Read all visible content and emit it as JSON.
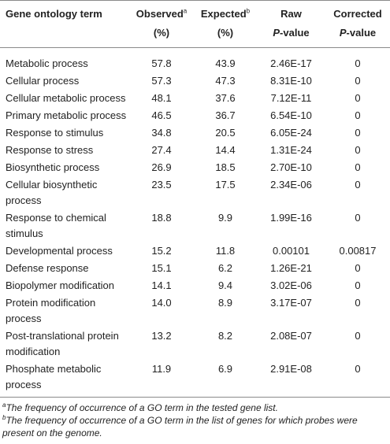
{
  "table": {
    "headers": {
      "term": "Gene ontology term",
      "observed": "Observed",
      "observed_sup": "a",
      "observed_unit": "(%)",
      "expected": "Expected",
      "expected_sup": "b",
      "expected_unit": "(%)",
      "raw_line1": "Raw",
      "raw_line2": "P",
      "raw_line2_rest": "-value",
      "corr_line1": "Corrected",
      "corr_line2": "P",
      "corr_line2_rest": "-value"
    },
    "rows": [
      {
        "term": "Metabolic process",
        "observed": "57.8",
        "expected": "43.9",
        "raw": "2.46E-17",
        "corrected": "0"
      },
      {
        "term": "Cellular process",
        "observed": "57.3",
        "expected": "47.3",
        "raw": "8.31E-10",
        "corrected": "0"
      },
      {
        "term": "Cellular metabolic process",
        "observed": "48.1",
        "expected": "37.6",
        "raw": "7.12E-11",
        "corrected": "0"
      },
      {
        "term": "Primary metabolic process",
        "observed": "46.5",
        "expected": "36.7",
        "raw": "6.54E-10",
        "corrected": "0"
      },
      {
        "term": "Response to stimulus",
        "observed": "34.8",
        "expected": "20.5",
        "raw": "6.05E-24",
        "corrected": "0"
      },
      {
        "term": "Response to stress",
        "observed": "27.4",
        "expected": "14.4",
        "raw": "1.31E-24",
        "corrected": "0"
      },
      {
        "term": "Biosynthetic process",
        "observed": "26.9",
        "expected": "18.5",
        "raw": "2.70E-10",
        "corrected": "0"
      },
      {
        "term": "Cellular biosynthetic process",
        "observed": "23.5",
        "expected": "17.5",
        "raw": "2.34E-06",
        "corrected": "0"
      },
      {
        "term": "Response to chemical stimulus",
        "observed": "18.8",
        "expected": "9.9",
        "raw": "1.99E-16",
        "corrected": "0"
      },
      {
        "term": "Developmental process",
        "observed": "15.2",
        "expected": "11.8",
        "raw": "0.00101",
        "corrected": "0.00817"
      },
      {
        "term": "Defense response",
        "observed": "15.1",
        "expected": "6.2",
        "raw": "1.26E-21",
        "corrected": "0"
      },
      {
        "term": "Biopolymer modification",
        "observed": "14.1",
        "expected": "9.4",
        "raw": "3.02E-06",
        "corrected": "0"
      },
      {
        "term": "Protein modification process",
        "observed": "14.0",
        "expected": "8.9",
        "raw": "3.17E-07",
        "corrected": "0"
      },
      {
        "term": "Post-translational protein modification",
        "observed": "13.2",
        "expected": "8.2",
        "raw": "2.08E-07",
        "corrected": "0"
      },
      {
        "term": "Phosphate metabolic process",
        "observed": "11.9",
        "expected": "6.9",
        "raw": "2.91E-08",
        "corrected": "0"
      }
    ]
  },
  "footnotes": {
    "a_mark": "a",
    "a_text": "The frequency of occurrence of a GO term in the tested gene list.",
    "b_mark": "b",
    "b_text": "The frequency of occurrence of a GO term in the list of genes for which probes were present on the genome."
  }
}
